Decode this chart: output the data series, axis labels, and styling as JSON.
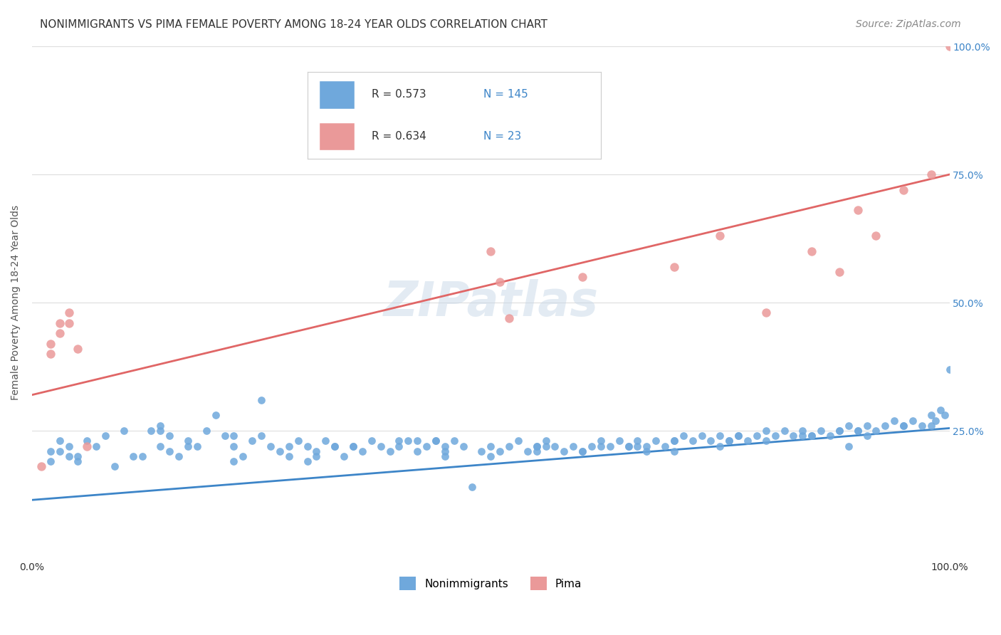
{
  "title": "NONIMMIGRANTS VS PIMA FEMALE POVERTY AMONG 18-24 YEAR OLDS CORRELATION CHART",
  "source": "Source: ZipAtlas.com",
  "xlabel": "",
  "ylabel": "Female Poverty Among 18-24 Year Olds",
  "xlim": [
    0,
    1
  ],
  "ylim": [
    0,
    1
  ],
  "xtick_labels": [
    "0.0%",
    "100.0%"
  ],
  "ytick_labels_right": [
    "100.0%",
    "75.0%",
    "50.0%",
    "25.0%"
  ],
  "watermark": "ZIPatlas",
  "blue_color": "#6fa8dc",
  "pink_color": "#ea9999",
  "blue_line_color": "#3d85c8",
  "pink_line_color": "#e06666",
  "legend_R_blue": "0.573",
  "legend_N_blue": "145",
  "legend_R_pink": "0.634",
  "legend_N_pink": "23",
  "blue_scatter_x": [
    0.02,
    0.02,
    0.03,
    0.04,
    0.04,
    0.05,
    0.05,
    0.06,
    0.07,
    0.08,
    0.09,
    0.1,
    0.12,
    0.13,
    0.14,
    0.14,
    0.15,
    0.15,
    0.16,
    0.17,
    0.18,
    0.19,
    0.2,
    0.21,
    0.22,
    0.23,
    0.24,
    0.25,
    0.26,
    0.27,
    0.28,
    0.29,
    0.3,
    0.31,
    0.32,
    0.33,
    0.34,
    0.35,
    0.36,
    0.37,
    0.38,
    0.39,
    0.4,
    0.41,
    0.42,
    0.43,
    0.44,
    0.45,
    0.46,
    0.47,
    0.48,
    0.49,
    0.5,
    0.51,
    0.52,
    0.53,
    0.54,
    0.55,
    0.56,
    0.57,
    0.58,
    0.59,
    0.6,
    0.61,
    0.62,
    0.63,
    0.64,
    0.65,
    0.66,
    0.67,
    0.68,
    0.69,
    0.7,
    0.71,
    0.72,
    0.73,
    0.74,
    0.75,
    0.76,
    0.77,
    0.78,
    0.79,
    0.8,
    0.81,
    0.82,
    0.83,
    0.84,
    0.85,
    0.86,
    0.87,
    0.88,
    0.89,
    0.9,
    0.91,
    0.92,
    0.93,
    0.94,
    0.95,
    0.96,
    0.97,
    0.98,
    0.985,
    0.99,
    0.995,
    1.0,
    0.25,
    0.3,
    0.35,
    0.4,
    0.45,
    0.5,
    0.55,
    0.6,
    0.65,
    0.7,
    0.75,
    0.8,
    0.85,
    0.9,
    0.95,
    0.22,
    0.33,
    0.44,
    0.55,
    0.66,
    0.77,
    0.88,
    0.14,
    0.28,
    0.42,
    0.56,
    0.7,
    0.84,
    0.98,
    0.11,
    0.22,
    0.45,
    0.67,
    0.89,
    0.03,
    0.17,
    0.31,
    0.62,
    0.76,
    0.91
  ],
  "blue_scatter_y": [
    0.21,
    0.19,
    0.23,
    0.2,
    0.22,
    0.19,
    0.2,
    0.23,
    0.22,
    0.24,
    0.18,
    0.25,
    0.2,
    0.25,
    0.22,
    0.25,
    0.21,
    0.24,
    0.2,
    0.23,
    0.22,
    0.25,
    0.28,
    0.24,
    0.22,
    0.2,
    0.23,
    0.24,
    0.22,
    0.21,
    0.2,
    0.23,
    0.22,
    0.21,
    0.23,
    0.22,
    0.2,
    0.22,
    0.21,
    0.23,
    0.22,
    0.21,
    0.22,
    0.23,
    0.21,
    0.22,
    0.23,
    0.22,
    0.23,
    0.22,
    0.14,
    0.21,
    0.22,
    0.21,
    0.22,
    0.23,
    0.21,
    0.22,
    0.23,
    0.22,
    0.21,
    0.22,
    0.21,
    0.22,
    0.23,
    0.22,
    0.23,
    0.22,
    0.23,
    0.22,
    0.23,
    0.22,
    0.23,
    0.24,
    0.23,
    0.24,
    0.23,
    0.24,
    0.23,
    0.24,
    0.23,
    0.24,
    0.25,
    0.24,
    0.25,
    0.24,
    0.25,
    0.24,
    0.25,
    0.24,
    0.25,
    0.26,
    0.25,
    0.26,
    0.25,
    0.26,
    0.27,
    0.26,
    0.27,
    0.26,
    0.28,
    0.27,
    0.29,
    0.28,
    0.37,
    0.31,
    0.19,
    0.22,
    0.23,
    0.21,
    0.2,
    0.22,
    0.21,
    0.22,
    0.21,
    0.22,
    0.23,
    0.24,
    0.25,
    0.26,
    0.24,
    0.22,
    0.23,
    0.21,
    0.22,
    0.24,
    0.25,
    0.26,
    0.22,
    0.23,
    0.22,
    0.23,
    0.24,
    0.26,
    0.2,
    0.19,
    0.2,
    0.21,
    0.22,
    0.21,
    0.22,
    0.2,
    0.22,
    0.23,
    0.24
  ],
  "pink_scatter_x": [
    0.01,
    0.02,
    0.02,
    0.03,
    0.03,
    0.04,
    0.04,
    0.05,
    0.06,
    0.5,
    0.51,
    0.52,
    0.6,
    0.7,
    0.75,
    0.8,
    0.85,
    0.88,
    0.9,
    0.92,
    0.95,
    0.98,
    1.0
  ],
  "pink_scatter_y": [
    0.18,
    0.42,
    0.4,
    0.46,
    0.44,
    0.48,
    0.46,
    0.41,
    0.22,
    0.6,
    0.54,
    0.47,
    0.55,
    0.57,
    0.63,
    0.48,
    0.6,
    0.56,
    0.68,
    0.63,
    0.72,
    0.75,
    1.0
  ],
  "blue_trend_x": [
    0,
    1
  ],
  "blue_trend_y": [
    0.115,
    0.255
  ],
  "pink_trend_x": [
    0,
    1
  ],
  "pink_trend_y": [
    0.32,
    0.75
  ],
  "title_fontsize": 11,
  "source_fontsize": 10,
  "axis_label_fontsize": 10,
  "legend_fontsize": 12,
  "watermark_fontsize": 48,
  "watermark_color": "#c8d8e8",
  "background_color": "#ffffff",
  "grid_color": "#dddddd"
}
